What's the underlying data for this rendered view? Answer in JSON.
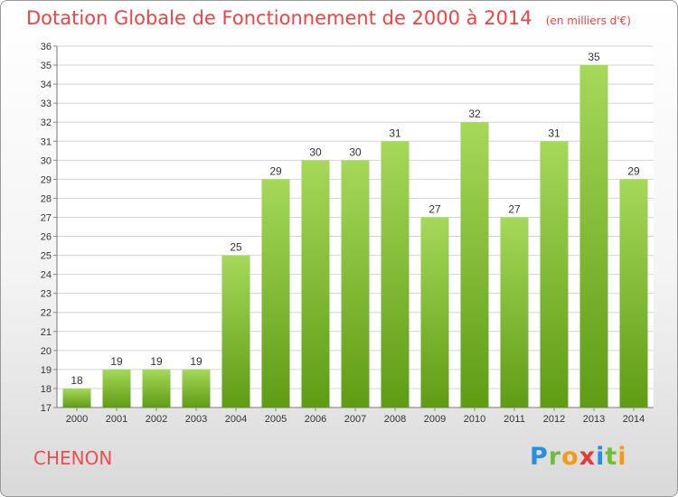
{
  "header": {
    "title": "Dotation Globale de Fonctionnement de 2000 à 2014",
    "unit": "(en milliers d'€)"
  },
  "footer": {
    "commune": "CHENON",
    "brand": "Proxiti"
  },
  "colors": {
    "title": "#ee4444",
    "bar_light": "#a6d85a",
    "bar_dark": "#5f9c14",
    "grid": "#d4d4d4"
  },
  "chart_data": {
    "type": "bar",
    "title": "Dotation Globale de Fonctionnement de 2000 à 2014",
    "subtitle": "(en milliers d'€)",
    "xlabel": "",
    "ylabel": "",
    "categories": [
      "2000",
      "2001",
      "2002",
      "2003",
      "2004",
      "2005",
      "2006",
      "2007",
      "2008",
      "2009",
      "2010",
      "2011",
      "2012",
      "2013",
      "2014"
    ],
    "values": [
      18,
      19,
      19,
      19,
      25,
      29,
      30,
      30,
      31,
      27,
      32,
      27,
      31,
      35,
      29
    ],
    "ylim": [
      17,
      36
    ],
    "yticks": [
      17,
      18,
      19,
      20,
      21,
      22,
      23,
      24,
      25,
      26,
      27,
      28,
      29,
      30,
      31,
      32,
      33,
      34,
      35,
      36
    ],
    "grid": true,
    "legend": "none"
  }
}
